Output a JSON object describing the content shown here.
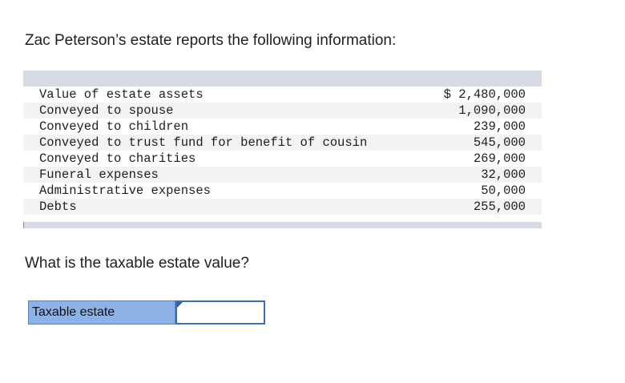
{
  "intro": "Zac Peterson’s estate reports the following information:",
  "table": {
    "rows": [
      {
        "label": "Value of estate assets",
        "amount": "$ 2,480,000"
      },
      {
        "label": "Conveyed to spouse",
        "amount": "1,090,000"
      },
      {
        "label": "Conveyed to children",
        "amount": "239,000"
      },
      {
        "label": "Conveyed to trust fund for benefit of cousin",
        "amount": "545,000"
      },
      {
        "label": "Conveyed to charities",
        "amount": "269,000"
      },
      {
        "label": "Funeral expenses",
        "amount": "32,000"
      },
      {
        "label": "Administrative expenses",
        "amount": "50,000"
      },
      {
        "label": "Debts",
        "amount": "255,000"
      }
    ]
  },
  "question": "What is the taxable estate value?",
  "answer": {
    "label": "Taxable estate",
    "value": ""
  }
}
